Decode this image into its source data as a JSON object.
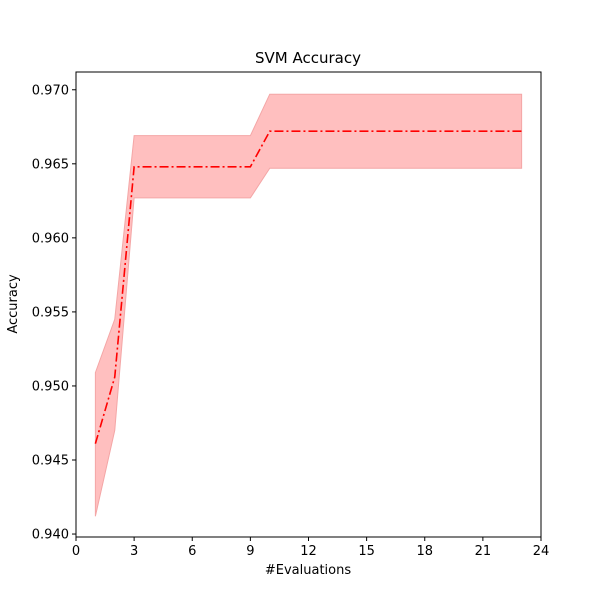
{
  "chart_data": {
    "type": "line",
    "title": "SVM Accuracy",
    "xlabel": "#Evaluations",
    "ylabel": "Accuracy",
    "xlim": [
      0,
      24
    ],
    "ylim": [
      0.9398,
      0.9712
    ],
    "x_ticks": [
      0,
      3,
      6,
      9,
      12,
      15,
      18,
      21,
      24
    ],
    "x_tick_labels": [
      "0",
      "3",
      "6",
      "9",
      "12",
      "15",
      "18",
      "21",
      "24"
    ],
    "y_ticks": [
      0.94,
      0.945,
      0.95,
      0.955,
      0.96,
      0.965,
      0.97
    ],
    "y_tick_labels": [
      "0.940",
      "0.945",
      "0.950",
      "0.955",
      "0.960",
      "0.965",
      "0.970"
    ],
    "grid": false,
    "legend": "none",
    "series": [
      {
        "x": [
          1,
          2,
          3,
          4,
          5,
          6,
          7,
          8,
          9,
          10,
          11,
          12,
          13,
          14,
          15,
          16,
          17,
          18,
          19,
          20,
          21,
          22,
          23
        ],
        "values": [
          0.9461,
          0.9506,
          0.9648,
          0.9648,
          0.9648,
          0.9648,
          0.9648,
          0.9648,
          0.9648,
          0.9672,
          0.9672,
          0.9672,
          0.9672,
          0.9672,
          0.9672,
          0.9672,
          0.9672,
          0.9672,
          0.9672,
          0.9672,
          0.9672,
          0.9672,
          0.9672
        ],
        "lower": [
          0.9412,
          0.947,
          0.9627,
          0.9627,
          0.9627,
          0.9627,
          0.9627,
          0.9627,
          0.9627,
          0.9647,
          0.9647,
          0.9647,
          0.9647,
          0.9647,
          0.9647,
          0.9647,
          0.9647,
          0.9647,
          0.9647,
          0.9647,
          0.9647,
          0.9647,
          0.9647
        ],
        "upper": [
          0.9509,
          0.9545,
          0.9669,
          0.9669,
          0.9669,
          0.9669,
          0.9669,
          0.9669,
          0.9669,
          0.9697,
          0.9697,
          0.9697,
          0.9697,
          0.9697,
          0.9697,
          0.9697,
          0.9697,
          0.9697,
          0.9697,
          0.9697,
          0.9697,
          0.9697,
          0.9697
        ],
        "line_color": "#ff0000",
        "line_style": "dash-dot",
        "band_color": "#ffbfbf",
        "band_edge_color": "#f4a6a6"
      }
    ]
  }
}
